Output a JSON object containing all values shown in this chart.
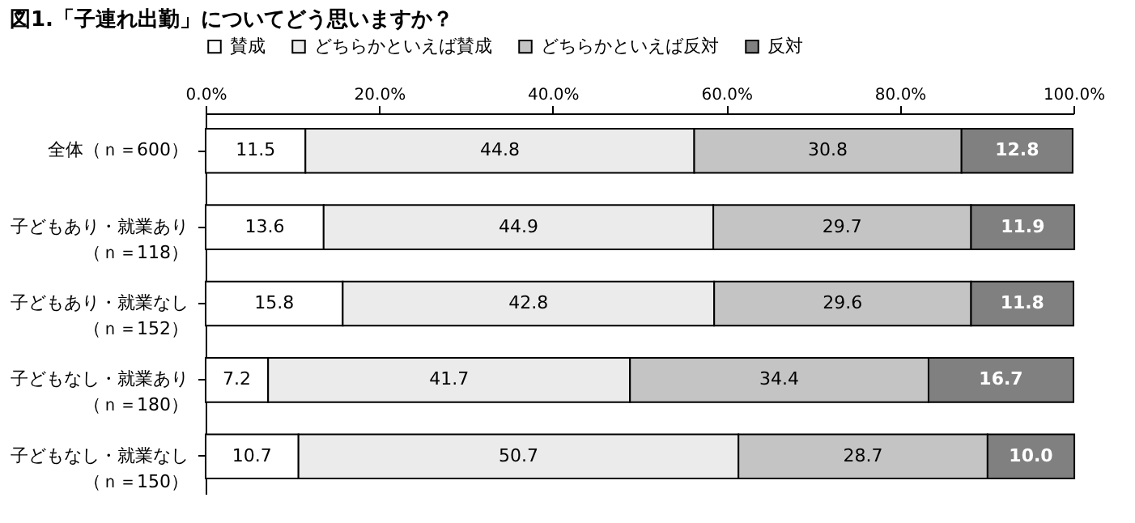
{
  "chart_data": {
    "type": "bar",
    "orientation": "horizontal",
    "stacked": true,
    "title": "図1.「子連れ出勤」についてどう思いますか？",
    "categories": [
      "全体（ｎ＝600）",
      "子どもあり・就業あり（ｎ＝118）",
      "子どもあり・就業なし（ｎ＝152）",
      "子どもなし・就業あり（ｎ＝180）",
      "子どもなし・就業なし（ｎ＝150）"
    ],
    "series": [
      {
        "name": "賛成",
        "color": "#ffffff",
        "values": [
          11.5,
          13.6,
          15.8,
          7.2,
          10.7
        ]
      },
      {
        "name": "どちらかといえば賛成",
        "color": "#ebebeb",
        "values": [
          44.8,
          44.9,
          42.8,
          41.7,
          50.7
        ]
      },
      {
        "name": "どちらかといえば反対",
        "color": "#c4c4c4",
        "values": [
          30.8,
          29.7,
          29.6,
          34.4,
          28.7
        ]
      },
      {
        "name": "反対",
        "color": "#808080",
        "values": [
          12.8,
          11.9,
          11.8,
          16.7,
          10.0
        ]
      }
    ],
    "value_labels": [
      [
        "11.5",
        "13.6",
        "15.8",
        "7.2",
        "10.7"
      ],
      [
        "44.8",
        "44.9",
        "42.8",
        "41.7",
        "50.7"
      ],
      [
        "30.8",
        "29.7",
        "29.6",
        "34.4",
        "28.7"
      ],
      [
        "12.8",
        "11.9",
        "11.8",
        "16.7",
        "10.0"
      ]
    ],
    "xlim": [
      0,
      100
    ],
    "xticks": [
      {
        "value": 0,
        "label": "0.0%"
      },
      {
        "value": 20,
        "label": "20.0%"
      },
      {
        "value": 40,
        "label": "40.0%"
      },
      {
        "value": 60,
        "label": "60.0%"
      },
      {
        "value": 80,
        "label": "80.0%"
      },
      {
        "value": 100,
        "label": "100.0%"
      }
    ],
    "grid": false,
    "legend": "top"
  }
}
